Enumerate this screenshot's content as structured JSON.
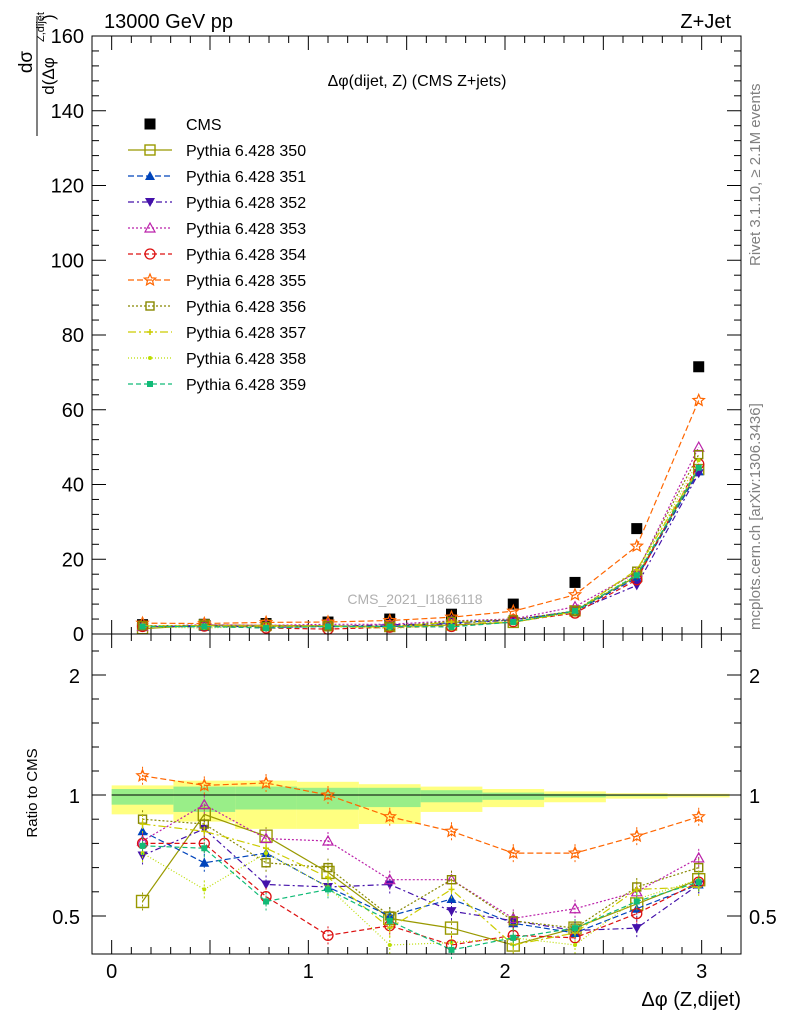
{
  "header": {
    "left": "13000 GeV pp",
    "right": "Z+Jet"
  },
  "side_labels": {
    "rivet": "Rivet 3.1.10, ≥ 2.1M events",
    "mcplots": "mcplots.cern.ch [arXiv:1306.3436]"
  },
  "chart_data": [
    {
      "type": "scatter",
      "title": "Δφ(dijet, Z) (CMS Z+jets)",
      "ylabel": "dσ / d(Δφ^{Z,dijet})",
      "watermark": "CMS_2021_I1866118",
      "xlim": [
        -0.1,
        3.2
      ],
      "ylim": [
        0,
        160
      ],
      "yticks": [
        "0",
        "20",
        "40",
        "60",
        "80",
        "100",
        "120",
        "140",
        "160"
      ],
      "x": [
        0.157,
        0.471,
        0.785,
        1.1,
        1.414,
        1.728,
        2.042,
        2.356,
        2.67,
        2.985
      ],
      "series": [
        {
          "name": "CMS",
          "color": "#000000",
          "marker": "filled-square",
          "dash": "",
          "values": [
            2.5,
            2.6,
            2.8,
            3.2,
            4.0,
            5.3,
            8.0,
            13.8,
            28.2,
            71.5
          ]
        },
        {
          "name": "Pythia 6.428 350",
          "color": "#999900",
          "marker": "open-square",
          "dash": "",
          "values": [
            1.4,
            2.4,
            2.3,
            2.2,
            2.0,
            2.4,
            3.1,
            6.2,
            15.4,
            44.0
          ]
        },
        {
          "name": "Pythia 6.428 351",
          "color": "#0044bb",
          "marker": "filled-triangle-up",
          "dash": "6,3",
          "values": [
            2.1,
            1.9,
            2.1,
            2.0,
            2.0,
            3.0,
            3.8,
            6.0,
            15.0,
            43.5
          ]
        },
        {
          "name": "Pythia 6.428 352",
          "color": "#4411aa",
          "marker": "filled-triangle-down",
          "dash": "6,3,2,3",
          "values": [
            1.9,
            2.3,
            1.8,
            2.0,
            2.5,
            2.7,
            3.8,
            6.1,
            13.0,
            43.0
          ]
        },
        {
          "name": "Pythia 6.428 353",
          "color": "#bb22aa",
          "marker": "open-triangle-up",
          "dash": "2,2",
          "values": [
            2.0,
            2.5,
            2.3,
            2.6,
            2.6,
            3.5,
            4.0,
            7.3,
            16.5,
            50.0
          ]
        },
        {
          "name": "Pythia 6.428 354",
          "color": "#dd1111",
          "marker": "open-circle",
          "dash": "5,3",
          "values": [
            2.0,
            2.1,
            1.6,
            1.3,
            1.8,
            2.0,
            3.3,
            5.6,
            14.5,
            45.5
          ]
        },
        {
          "name": "Pythia 6.428 355",
          "color": "#ff6600",
          "marker": "open-star",
          "dash": "6,3",
          "values": [
            2.9,
            2.8,
            3.1,
            3.2,
            3.6,
            4.5,
            6.1,
            10.5,
            23.5,
            62.5
          ]
        },
        {
          "name": "Pythia 6.428 356",
          "color": "#888800",
          "marker": "open-square-small",
          "dash": "2,2",
          "values": [
            2.2,
            2.3,
            2.0,
            2.2,
            2.0,
            3.4,
            3.8,
            6.2,
            16.8,
            48.0
          ]
        },
        {
          "name": "Pythia 6.428 357",
          "color": "#cccc00",
          "marker": "small-cross",
          "dash": "8,3,2,3",
          "values": [
            2.2,
            2.2,
            2.2,
            2.1,
            1.8,
            3.2,
            3.1,
            6.0,
            17.2,
            44.5
          ]
        },
        {
          "name": "Pythia 6.428 358",
          "color": "#bbdd00",
          "marker": "dot",
          "dash": "1,2",
          "values": [
            1.9,
            1.6,
            2.1,
            2.0,
            1.5,
            2.3,
            3.3,
            5.8,
            16.0,
            46.5
          ]
        },
        {
          "name": "Pythia 6.428 359",
          "color": "#11bb77",
          "marker": "filled-square-small",
          "dash": "5,3",
          "values": [
            2.0,
            2.0,
            1.6,
            2.0,
            2.0,
            1.9,
            3.2,
            6.2,
            15.7,
            44.5
          ]
        }
      ]
    },
    {
      "type": "scatter",
      "ylabel": "Ratio to CMS",
      "xlabel": "Δφ (Z,dijet)",
      "xlim": [
        -0.1,
        3.2
      ],
      "ylim": [
        0.34,
        2.3
      ],
      "xticks": [
        "0",
        "1",
        "2",
        "3"
      ],
      "yticks": [
        "0.5",
        "1",
        "2"
      ],
      "bin_edges": [
        0.0,
        0.314,
        0.628,
        0.942,
        1.257,
        1.571,
        1.885,
        2.199,
        2.513,
        2.827,
        3.142
      ],
      "band_inner": [
        [
          0.96,
          1.05
        ],
        [
          0.93,
          1.07
        ],
        [
          0.94,
          1.07
        ],
        [
          0.94,
          1.06
        ],
        [
          0.95,
          1.06
        ],
        [
          0.97,
          1.04
        ],
        [
          0.98,
          1.02
        ],
        [
          0.99,
          1.01
        ],
        [
          0.995,
          1.005
        ],
        [
          0.997,
          1.003
        ]
      ],
      "band_outer": [
        [
          0.92,
          1.08
        ],
        [
          0.89,
          1.12
        ],
        [
          0.86,
          1.12
        ],
        [
          0.86,
          1.11
        ],
        [
          0.88,
          1.09
        ],
        [
          0.93,
          1.07
        ],
        [
          0.95,
          1.05
        ],
        [
          0.97,
          1.03
        ],
        [
          0.985,
          1.015
        ],
        [
          0.99,
          1.01
        ]
      ],
      "reference": 1.0,
      "series": [
        {
          "name": "Pythia 6.428 350",
          "values": [
            0.56,
            0.92,
            0.83,
            0.68,
            0.49,
            0.45,
            0.38,
            0.45,
            0.55,
            0.65
          ]
        },
        {
          "name": "Pythia 6.428 351",
          "values": [
            0.85,
            0.72,
            0.76,
            0.62,
            0.5,
            0.57,
            0.47,
            0.43,
            0.53,
            0.63
          ]
        },
        {
          "name": "Pythia 6.428 352",
          "values": [
            0.75,
            0.86,
            0.63,
            0.62,
            0.63,
            0.52,
            0.48,
            0.44,
            0.45,
            0.63
          ]
        },
        {
          "name": "Pythia 6.428 353",
          "values": [
            0.81,
            0.96,
            0.82,
            0.81,
            0.65,
            0.65,
            0.49,
            0.53,
            0.6,
            0.74
          ]
        },
        {
          "name": "Pythia 6.428 354",
          "values": [
            0.8,
            0.8,
            0.58,
            0.42,
            0.46,
            0.38,
            0.42,
            0.41,
            0.51,
            0.64
          ]
        },
        {
          "name": "Pythia 6.428 355",
          "values": [
            1.16,
            1.08,
            1.1,
            1.0,
            0.91,
            0.85,
            0.76,
            0.76,
            0.83,
            0.91
          ]
        },
        {
          "name": "Pythia 6.428 356",
          "values": [
            0.9,
            0.88,
            0.72,
            0.7,
            0.5,
            0.65,
            0.48,
            0.45,
            0.62,
            0.7
          ]
        },
        {
          "name": "Pythia 6.428 357",
          "values": [
            0.88,
            0.85,
            0.78,
            0.66,
            0.45,
            0.61,
            0.38,
            0.43,
            0.61,
            0.62
          ]
        },
        {
          "name": "Pythia 6.428 358",
          "values": [
            0.76,
            0.61,
            0.76,
            0.62,
            0.38,
            0.39,
            0.41,
            0.38,
            0.57,
            0.65
          ]
        },
        {
          "name": "Pythia 6.428 359",
          "values": [
            0.79,
            0.78,
            0.56,
            0.61,
            0.48,
            0.36,
            0.41,
            0.45,
            0.56,
            0.64
          ]
        }
      ]
    }
  ]
}
